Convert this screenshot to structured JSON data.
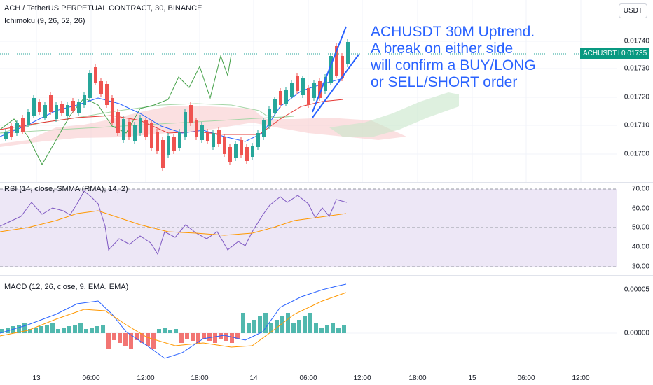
{
  "header": {
    "title": "ACH / TetherUS PERPETUAL CONTRACT, 30, BINANCE",
    "indicator": "Ichimoku (9, 26, 52, 26)",
    "currency_button": "USDT"
  },
  "annotation": [
    "ACHUSDT 30M Uptrend.",
    "A break on either side",
    "will confirm a BUY/LONG",
    "or SELL/SHORT order"
  ],
  "price_axis": {
    "labels": [
      "0.01740",
      "0.01730",
      "0.01720",
      "0.01710",
      "0.01700"
    ],
    "symbol_tag": "ACHUSDT.P",
    "last_price": "0.01735"
  },
  "rsi": {
    "label": "RSI (14, close, SMMA (RMA), 14, 2)",
    "axis_labels": [
      "70.00",
      "60.00",
      "50.00",
      "40.00",
      "30.00"
    ]
  },
  "macd": {
    "label": "MACD (12, 26, close, 9, EMA, EMA)",
    "axis_labels": [
      "0.00005",
      "0.00000"
    ]
  },
  "time_axis": [
    "13",
    "06:00",
    "12:00",
    "18:00",
    "14",
    "06:00",
    "12:00",
    "18:00",
    "15",
    "06:00",
    "12:00"
  ],
  "colors": {
    "up": "#26a69a",
    "down": "#ef5350",
    "blue": "#2962ff",
    "orange": "#ff9800",
    "rsi_line": "#7e57c2",
    "rsi_band": "#ede7f6"
  }
}
